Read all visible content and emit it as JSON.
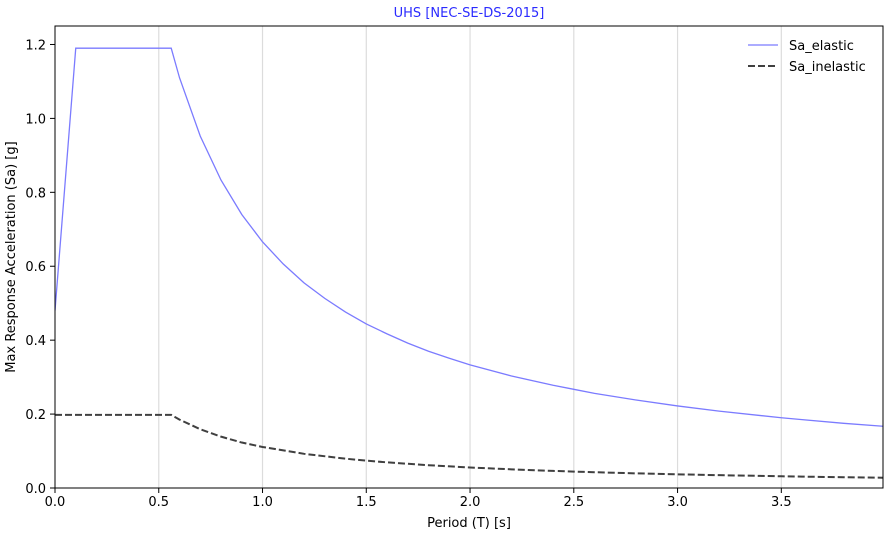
{
  "chart_data": {
    "type": "line",
    "title": "UHS [NEC-SE-DS-2015]",
    "title_color": "#2b2bff",
    "xlabel": "Period (T) [s]",
    "ylabel": "Max Response Acceleration (Sa) [g]",
    "xlim": [
      0,
      3.99
    ],
    "ylim": [
      0,
      1.25
    ],
    "x_ticks": [
      0.0,
      0.5,
      1.0,
      1.5,
      2.0,
      2.5,
      3.0,
      3.5
    ],
    "x_tick_labels": [
      "0.0",
      "0.5",
      "1.0",
      "1.5",
      "2.0",
      "2.5",
      "3.0",
      "3.5"
    ],
    "y_ticks": [
      0.0,
      0.2,
      0.4,
      0.6,
      0.8,
      1.0,
      1.2
    ],
    "y_tick_labels": [
      "0.0",
      "0.2",
      "0.4",
      "0.6",
      "0.8",
      "1.0",
      "1.2"
    ],
    "grid": "vertical",
    "legend_position": "top-right",
    "series": [
      {
        "name": "Sa_elastic",
        "color": "#7b7bff",
        "style": "solid",
        "x": [
          0.0,
          0.1,
          0.56,
          0.6,
          0.7,
          0.8,
          0.9,
          1.0,
          1.1,
          1.2,
          1.3,
          1.4,
          1.5,
          1.6,
          1.7,
          1.8,
          1.9,
          2.0,
          2.2,
          2.4,
          2.5,
          2.6,
          2.8,
          3.0,
          3.2,
          3.4,
          3.5,
          3.6,
          3.8,
          3.99
        ],
        "values": [
          0.48,
          1.19,
          1.19,
          1.11,
          0.952,
          0.833,
          0.74,
          0.666,
          0.606,
          0.555,
          0.513,
          0.476,
          0.444,
          0.417,
          0.392,
          0.37,
          0.351,
          0.333,
          0.303,
          0.278,
          0.267,
          0.256,
          0.238,
          0.222,
          0.208,
          0.196,
          0.19,
          0.185,
          0.175,
          0.167
        ]
      },
      {
        "name": "Sa_inelastic",
        "color": "#404040",
        "style": "dashed",
        "x": [
          0.0,
          0.56,
          0.6,
          0.7,
          0.8,
          0.9,
          1.0,
          1.2,
          1.4,
          1.5,
          1.6,
          1.8,
          2.0,
          2.2,
          2.4,
          2.5,
          2.6,
          2.8,
          3.0,
          3.2,
          3.4,
          3.5,
          3.6,
          3.8,
          3.99
        ],
        "values": [
          0.198,
          0.198,
          0.185,
          0.159,
          0.139,
          0.123,
          0.111,
          0.0925,
          0.0793,
          0.074,
          0.0694,
          0.0617,
          0.0555,
          0.0505,
          0.0463,
          0.0444,
          0.0427,
          0.0396,
          0.037,
          0.0347,
          0.0327,
          0.0317,
          0.0308,
          0.0292,
          0.0278
        ]
      }
    ]
  }
}
